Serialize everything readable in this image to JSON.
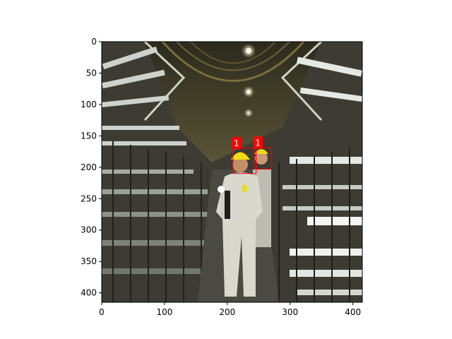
{
  "image": {
    "width": 415,
    "height": 415,
    "description_icon": "tunnel-photo"
  },
  "axes": {
    "x_ticks": [
      {
        "value": 0,
        "label": "0"
      },
      {
        "value": 100,
        "label": "100"
      },
      {
        "value": 200,
        "label": "200"
      },
      {
        "value": 300,
        "label": "300"
      },
      {
        "value": 400,
        "label": "400"
      }
    ],
    "y_ticks": [
      {
        "value": 0,
        "label": "0"
      },
      {
        "value": 50,
        "label": "50"
      },
      {
        "value": 100,
        "label": "100"
      },
      {
        "value": 150,
        "label": "150"
      },
      {
        "value": 200,
        "label": "200"
      },
      {
        "value": 250,
        "label": "250"
      },
      {
        "value": 300,
        "label": "300"
      },
      {
        "value": 350,
        "label": "350"
      },
      {
        "value": 400,
        "label": "400"
      }
    ]
  },
  "detections": [
    {
      "label": "1",
      "x1": 209,
      "y1": 170,
      "x2": 246,
      "y2": 210,
      "color": "#ff0000"
    },
    {
      "label": "1",
      "x1": 243,
      "y1": 169,
      "x2": 270,
      "y2": 203,
      "color": "#ff0000"
    }
  ]
}
